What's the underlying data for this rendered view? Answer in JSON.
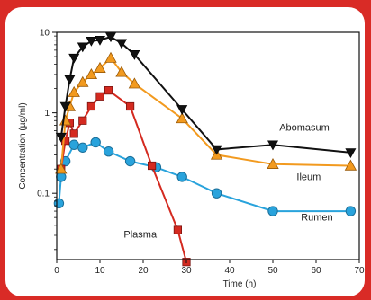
{
  "chart_data": {
    "type": "line",
    "xlabel": "Time (h)",
    "ylabel": "Concentration (µg/ml)",
    "xlim": [
      0,
      70
    ],
    "ylim": [
      0.015,
      10
    ],
    "yscale": "log",
    "x_ticks": [
      0,
      10,
      20,
      30,
      40,
      50,
      60,
      70
    ],
    "y_ticks": [
      {
        "value": 0.1,
        "label": "0.1"
      },
      {
        "value": 1,
        "label": "1"
      },
      {
        "value": 10,
        "label": "10"
      }
    ],
    "grid": false,
    "series": [
      {
        "name": "Abomasum",
        "color": "#111111",
        "marker": "triangle-down",
        "x": [
          1,
          2,
          3,
          4,
          6,
          8,
          10,
          12.5,
          15,
          18,
          29,
          37,
          50,
          68
        ],
        "y": [
          0.5,
          1.2,
          2.6,
          4.8,
          6.6,
          7.8,
          8.0,
          8.8,
          7.3,
          5.3,
          1.1,
          0.35,
          0.4,
          0.32
        ]
      },
      {
        "name": "Ileum",
        "color": "#f29a1f",
        "marker": "triangle-up",
        "x": [
          1,
          2,
          3,
          4,
          6,
          8,
          10,
          12.5,
          15,
          18,
          29,
          37,
          50,
          68
        ],
        "y": [
          0.2,
          0.8,
          1.2,
          1.8,
          2.4,
          3.0,
          3.6,
          4.8,
          3.2,
          2.3,
          0.85,
          0.3,
          0.23,
          0.22
        ]
      },
      {
        "name": "Plasma",
        "color": "#d42a20",
        "marker": "square",
        "x": [
          1,
          2,
          3,
          4,
          6,
          8,
          10,
          12,
          17,
          22,
          28,
          30
        ],
        "y": [
          0.2,
          0.45,
          0.75,
          0.55,
          0.8,
          1.2,
          1.6,
          1.9,
          1.2,
          0.22,
          0.035,
          0.014
        ]
      },
      {
        "name": "Rumen",
        "color": "#29a3dc",
        "marker": "circle",
        "x": [
          0.5,
          1,
          2,
          4,
          6,
          9,
          12,
          17,
          23,
          29,
          37,
          50,
          68
        ],
        "y": [
          0.075,
          0.16,
          0.25,
          0.4,
          0.37,
          0.43,
          0.33,
          0.25,
          0.21,
          0.16,
          0.1,
          0.06,
          0.06
        ]
      }
    ],
    "annotations": [
      {
        "text": "Abomasum"
      },
      {
        "text": "Ileum"
      },
      {
        "text": "Plasma"
      },
      {
        "text": "Rumen"
      }
    ]
  }
}
